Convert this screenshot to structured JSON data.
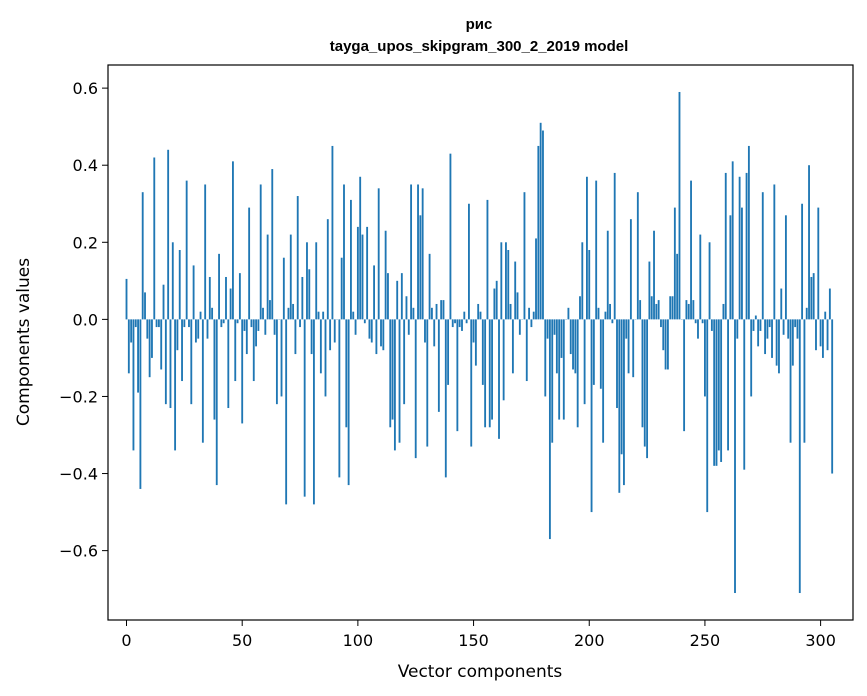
{
  "chart_data": {
    "type": "bar",
    "title_line1": "рис",
    "title_line2": "tayga_upos_skipgram_300_2_2019 model",
    "xlabel": "Vector components",
    "ylabel": "Components values",
    "xlim": [
      -8,
      314
    ],
    "ylim": [
      -0.78,
      0.66
    ],
    "xticks": [
      0,
      50,
      100,
      150,
      200,
      250,
      300
    ],
    "xtick_labels": [
      "0",
      "50",
      "100",
      "150",
      "200",
      "250",
      "300"
    ],
    "yticks": [
      -0.6,
      -0.4,
      -0.2,
      0.0,
      0.2,
      0.4,
      0.6
    ],
    "ytick_labels": [
      "−0.6",
      "−0.4",
      "−0.2",
      "0.0",
      "0.2",
      "0.4",
      "0.6"
    ],
    "bar_color": "#1f77b4",
    "grid": false,
    "values": [
      0.105,
      -0.14,
      -0.06,
      -0.34,
      -0.02,
      -0.19,
      -0.44,
      0.33,
      0.07,
      -0.05,
      -0.15,
      -0.1,
      0.42,
      -0.02,
      -0.02,
      -0.13,
      0.09,
      -0.22,
      0.44,
      -0.23,
      0.2,
      -0.34,
      -0.08,
      0.18,
      -0.16,
      -0.02,
      0.36,
      -0.02,
      -0.22,
      0.14,
      -0.06,
      -0.05,
      0.02,
      -0.32,
      0.35,
      -0.05,
      0.11,
      0.03,
      -0.26,
      -0.43,
      0.17,
      -0.02,
      -0.01,
      0.11,
      -0.23,
      0.08,
      0.41,
      -0.16,
      -0.01,
      0.12,
      -0.27,
      -0.03,
      -0.09,
      0.29,
      -0.02,
      -0.16,
      -0.07,
      -0.03,
      0.35,
      0.03,
      -0.04,
      0.22,
      0.05,
      0.39,
      -0.04,
      -0.22,
      0.0,
      -0.2,
      0.16,
      -0.48,
      0.03,
      0.22,
      0.04,
      -0.09,
      0.32,
      -0.02,
      0.11,
      -0.46,
      0.2,
      0.13,
      -0.09,
      -0.48,
      0.2,
      0.02,
      -0.14,
      0.02,
      -0.2,
      0.26,
      -0.08,
      0.45,
      -0.06,
      0.0,
      -0.41,
      0.16,
      0.35,
      -0.28,
      -0.43,
      0.31,
      0.02,
      -0.04,
      0.24,
      0.37,
      0.22,
      -0.01,
      0.24,
      -0.05,
      -0.06,
      0.14,
      -0.09,
      0.34,
      -0.07,
      -0.08,
      0.23,
      0.12,
      -0.28,
      -0.26,
      -0.34,
      0.1,
      -0.32,
      0.12,
      -0.22,
      0.06,
      -0.04,
      0.35,
      0.03,
      -0.36,
      0.35,
      0.27,
      0.34,
      -0.06,
      -0.33,
      0.17,
      0.03,
      -0.07,
      0.04,
      -0.24,
      0.05,
      0.05,
      -0.41,
      -0.17,
      0.43,
      -0.02,
      -0.01,
      -0.29,
      -0.02,
      -0.03,
      0.02,
      -0.01,
      0.3,
      -0.33,
      -0.06,
      -0.12,
      0.04,
      0.02,
      -0.17,
      -0.28,
      0.31,
      -0.28,
      -0.26,
      0.08,
      0.1,
      -0.31,
      0.2,
      -0.21,
      0.2,
      0.18,
      0.04,
      -0.14,
      0.15,
      0.07,
      -0.04,
      0.0,
      0.33,
      -0.16,
      0.03,
      -0.02,
      0.02,
      0.21,
      0.45,
      0.51,
      0.49,
      -0.2,
      -0.05,
      -0.57,
      -0.32,
      -0.04,
      -0.14,
      -0.26,
      -0.1,
      -0.26,
      0.0,
      0.03,
      -0.09,
      -0.13,
      -0.14,
      -0.28,
      0.06,
      0.2,
      -0.22,
      0.37,
      0.18,
      -0.5,
      -0.17,
      0.36,
      0.03,
      -0.18,
      -0.32,
      0.02,
      0.23,
      0.04,
      -0.01,
      0.38,
      -0.23,
      -0.45,
      -0.35,
      -0.43,
      -0.05,
      -0.14,
      0.26,
      -0.15,
      0.0,
      0.33,
      0.05,
      -0.28,
      -0.33,
      -0.36,
      0.15,
      0.06,
      0.23,
      0.04,
      0.05,
      -0.02,
      -0.08,
      -0.13,
      -0.13,
      0.06,
      0.06,
      0.29,
      0.17,
      0.59,
      0.0,
      -0.29,
      0.05,
      0.04,
      0.36,
      0.05,
      -0.01,
      -0.05,
      0.22,
      -0.01,
      -0.2,
      -0.5,
      0.2,
      -0.03,
      -0.38,
      -0.38,
      -0.34,
      -0.37,
      0.04,
      0.38,
      -0.34,
      0.27,
      0.41,
      -0.71,
      -0.05,
      0.37,
      0.29,
      -0.39,
      0.38,
      0.45,
      -0.2,
      -0.03,
      0.01,
      -0.07,
      -0.03,
      0.33,
      -0.09,
      -0.05,
      -0.02,
      -0.1,
      0.35,
      -0.12,
      -0.14,
      0.08,
      -0.04,
      0.27,
      -0.05,
      -0.32,
      -0.12,
      -0.02,
      -0.05,
      -0.71,
      0.3,
      -0.32,
      0.03,
      0.4,
      0.11,
      0.12,
      -0.08,
      0.29,
      -0.07,
      -0.1,
      0.02,
      -0.08,
      0.08,
      -0.4
    ]
  }
}
